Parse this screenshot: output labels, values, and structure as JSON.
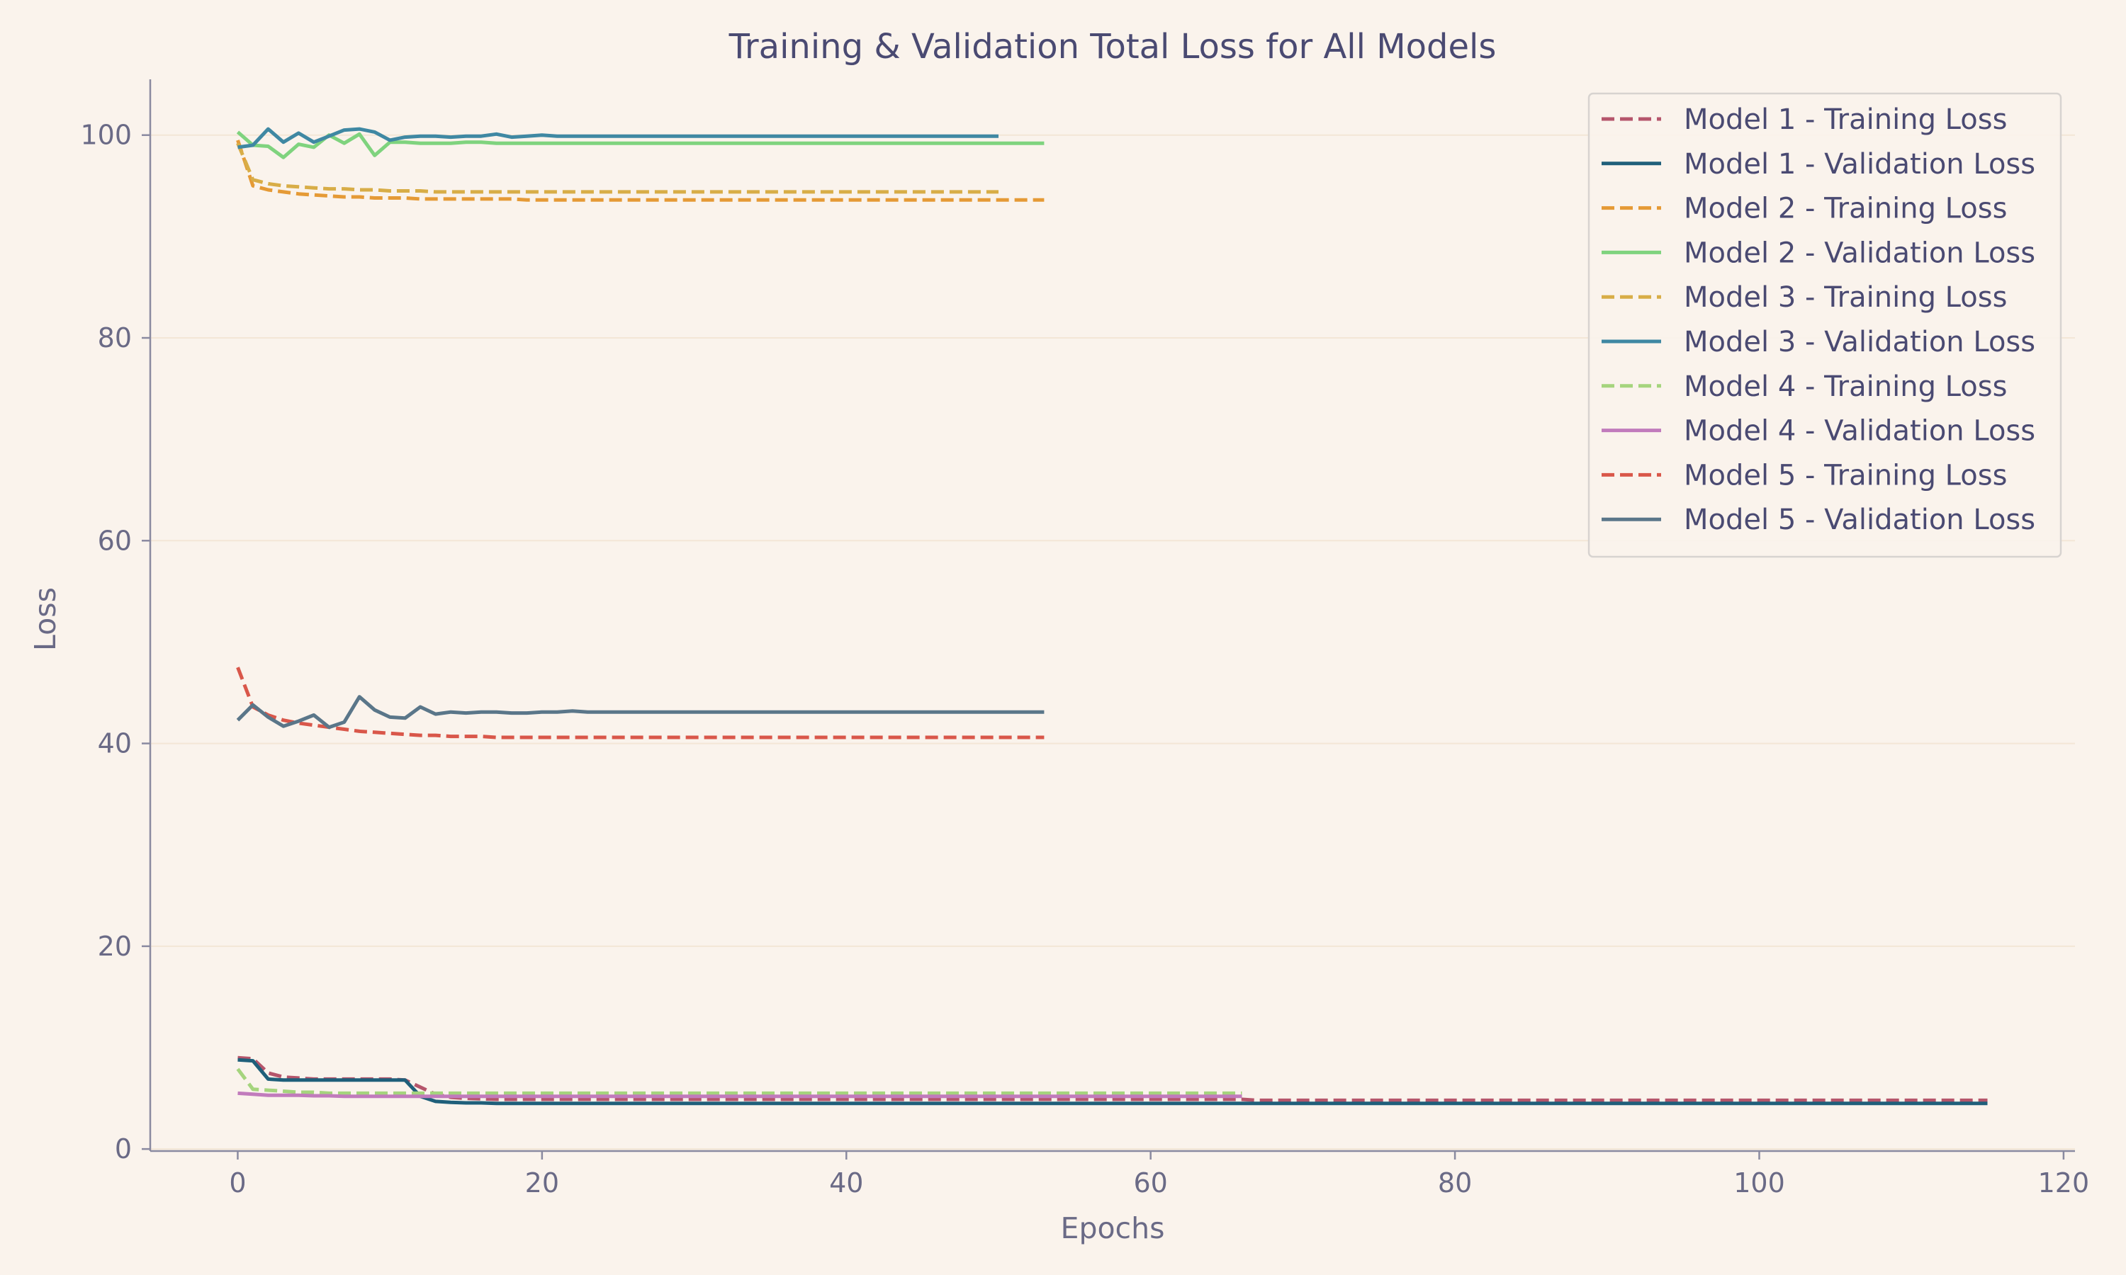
{
  "chart_data": {
    "type": "line",
    "title": "Training & Validation Total Loss for All Models",
    "xlabel": "Epochs",
    "ylabel": "Loss",
    "xlim": [
      -5.75,
      120.75
    ],
    "ylim": [
      -0.2,
      105.5
    ],
    "xticks": [
      0,
      20,
      40,
      60,
      80,
      100,
      120
    ],
    "yticks": [
      0,
      20,
      40,
      60,
      80,
      100
    ],
    "grid": "horizontal",
    "legend_position": "top-right",
    "series": [
      {
        "name": "Model 1 - Training Loss",
        "color": "#b5556b",
        "dash": true,
        "values": [
          9.0,
          8.9,
          7.5,
          7.1,
          7.0,
          6.9,
          6.9,
          6.9,
          6.9,
          6.9,
          6.9,
          6.8,
          6.1,
          5.4,
          5.1,
          5.0,
          4.95,
          4.9,
          4.9,
          4.9,
          4.9,
          4.9,
          4.9,
          4.9,
          4.9,
          4.9,
          4.9,
          4.9,
          4.9,
          4.9,
          4.9,
          4.9,
          4.9,
          4.9,
          4.9,
          4.9,
          4.9,
          4.9,
          4.9,
          4.9,
          4.9,
          4.9,
          4.9,
          4.9,
          4.9,
          4.9,
          4.9,
          4.9,
          4.9,
          4.9,
          4.9,
          4.9,
          4.9,
          4.9,
          4.9,
          4.9,
          4.9,
          4.9,
          4.9,
          4.9,
          4.9,
          4.9,
          4.9,
          4.9,
          4.9,
          4.9,
          4.9,
          4.8,
          4.8,
          4.8,
          4.8,
          4.8,
          4.8,
          4.8,
          4.8,
          4.8,
          4.8,
          4.8,
          4.8,
          4.8,
          4.8,
          4.8,
          4.8,
          4.8,
          4.8,
          4.8,
          4.8,
          4.8,
          4.8,
          4.8,
          4.8,
          4.8,
          4.8,
          4.8,
          4.8,
          4.8,
          4.8,
          4.8,
          4.8,
          4.8,
          4.8,
          4.8,
          4.8,
          4.8,
          4.8,
          4.8,
          4.8,
          4.8,
          4.8,
          4.8,
          4.8,
          4.8,
          4.8,
          4.8,
          4.8,
          4.8
        ]
      },
      {
        "name": "Model 1 - Validation Loss",
        "color": "#1f5f7a",
        "dash": false,
        "values": [
          8.8,
          8.7,
          6.9,
          6.8,
          6.8,
          6.8,
          6.8,
          6.8,
          6.8,
          6.8,
          6.8,
          6.8,
          5.2,
          4.7,
          4.6,
          4.55,
          4.55,
          4.5,
          4.5,
          4.5,
          4.5,
          4.5,
          4.5,
          4.5,
          4.5,
          4.5,
          4.5,
          4.5,
          4.5,
          4.5,
          4.5,
          4.5,
          4.5,
          4.5,
          4.5,
          4.5,
          4.5,
          4.5,
          4.5,
          4.5,
          4.5,
          4.5,
          4.5,
          4.5,
          4.5,
          4.5,
          4.5,
          4.5,
          4.5,
          4.5,
          4.5,
          4.5,
          4.5,
          4.5,
          4.5,
          4.5,
          4.5,
          4.5,
          4.5,
          4.5,
          4.5,
          4.5,
          4.5,
          4.5,
          4.5,
          4.5,
          4.5,
          4.5,
          4.5,
          4.5,
          4.5,
          4.5,
          4.5,
          4.5,
          4.5,
          4.5,
          4.5,
          4.5,
          4.5,
          4.5,
          4.5,
          4.5,
          4.5,
          4.5,
          4.5,
          4.5,
          4.5,
          4.5,
          4.5,
          4.5,
          4.5,
          4.5,
          4.5,
          4.5,
          4.5,
          4.5,
          4.5,
          4.5,
          4.5,
          4.5,
          4.5,
          4.5,
          4.5,
          4.5,
          4.5,
          4.5,
          4.5,
          4.5,
          4.5,
          4.5,
          4.5,
          4.5,
          4.5,
          4.5,
          4.5,
          4.5
        ]
      },
      {
        "name": "Model 2 - Training Loss",
        "color": "#e59a36",
        "dash": true,
        "values": [
          99.5,
          95.0,
          94.6,
          94.4,
          94.2,
          94.1,
          94.0,
          93.9,
          93.9,
          93.8,
          93.8,
          93.8,
          93.7,
          93.7,
          93.7,
          93.7,
          93.7,
          93.7,
          93.7,
          93.6,
          93.6,
          93.6,
          93.6,
          93.6,
          93.6,
          93.6,
          93.6,
          93.6,
          93.6,
          93.6,
          93.6,
          93.6,
          93.6,
          93.6,
          93.6,
          93.6,
          93.6,
          93.6,
          93.6,
          93.6,
          93.6,
          93.6,
          93.6,
          93.6,
          93.6,
          93.6,
          93.6,
          93.6,
          93.6,
          93.6,
          93.6,
          93.6,
          93.6,
          93.6
        ]
      },
      {
        "name": "Model 2 - Validation Loss",
        "color": "#7fd37e",
        "dash": false,
        "values": [
          100.3,
          99.0,
          98.9,
          97.8,
          99.1,
          98.8,
          100.0,
          99.2,
          100.1,
          98.0,
          99.3,
          99.3,
          99.2,
          99.2,
          99.2,
          99.3,
          99.3,
          99.2,
          99.2,
          99.2,
          99.2,
          99.2,
          99.2,
          99.2,
          99.2,
          99.2,
          99.2,
          99.2,
          99.2,
          99.2,
          99.2,
          99.2,
          99.2,
          99.2,
          99.2,
          99.2,
          99.2,
          99.2,
          99.2,
          99.2,
          99.2,
          99.2,
          99.2,
          99.2,
          99.2,
          99.2,
          99.2,
          99.2,
          99.2,
          99.2,
          99.2,
          99.2,
          99.2,
          99.2
        ]
      },
      {
        "name": "Model 3 - Training Loss",
        "color": "#d8ad47",
        "dash": true,
        "values": [
          99.2,
          95.6,
          95.2,
          95.0,
          94.9,
          94.8,
          94.7,
          94.7,
          94.6,
          94.6,
          94.5,
          94.5,
          94.5,
          94.4,
          94.4,
          94.4,
          94.4,
          94.4,
          94.4,
          94.4,
          94.4,
          94.4,
          94.4,
          94.4,
          94.4,
          94.4,
          94.4,
          94.4,
          94.4,
          94.4,
          94.4,
          94.4,
          94.4,
          94.4,
          94.4,
          94.4,
          94.4,
          94.4,
          94.4,
          94.4,
          94.4,
          94.4,
          94.4,
          94.4,
          94.4,
          94.4,
          94.4,
          94.4,
          94.4,
          94.4,
          94.4
        ]
      },
      {
        "name": "Model 3 - Validation Loss",
        "color": "#3f88a3",
        "dash": false,
        "values": [
          98.8,
          99.0,
          100.6,
          99.3,
          100.2,
          99.3,
          99.9,
          100.5,
          100.6,
          100.3,
          99.5,
          99.8,
          99.9,
          99.9,
          99.8,
          99.9,
          99.9,
          100.1,
          99.8,
          99.9,
          100.0,
          99.9,
          99.9,
          99.9,
          99.9,
          99.9,
          99.9,
          99.9,
          99.9,
          99.9,
          99.9,
          99.9,
          99.9,
          99.9,
          99.9,
          99.9,
          99.9,
          99.9,
          99.9,
          99.9,
          99.9,
          99.9,
          99.9,
          99.9,
          99.9,
          99.9,
          99.9,
          99.9,
          99.9,
          99.9,
          99.9
        ]
      },
      {
        "name": "Model 4 - Training Loss",
        "color": "#a5d47d",
        "dash": true,
        "values": [
          7.9,
          5.9,
          5.8,
          5.7,
          5.6,
          5.6,
          5.5,
          5.5,
          5.5,
          5.5,
          5.5,
          5.5,
          5.5,
          5.5,
          5.5,
          5.5,
          5.5,
          5.5,
          5.5,
          5.5,
          5.5,
          5.5,
          5.5,
          5.5,
          5.5,
          5.5,
          5.5,
          5.5,
          5.5,
          5.5,
          5.5,
          5.5,
          5.5,
          5.5,
          5.5,
          5.5,
          5.5,
          5.5,
          5.5,
          5.5,
          5.5,
          5.5,
          5.5,
          5.5,
          5.5,
          5.5,
          5.5,
          5.5,
          5.5,
          5.5,
          5.5,
          5.5,
          5.5,
          5.5,
          5.5,
          5.5,
          5.5,
          5.5,
          5.5,
          5.5,
          5.5,
          5.5,
          5.5,
          5.5,
          5.5,
          5.5,
          5.5
        ]
      },
      {
        "name": "Model 4 - Validation Loss",
        "color": "#c17bbc",
        "dash": false,
        "values": [
          5.5,
          5.4,
          5.3,
          5.3,
          5.3,
          5.25,
          5.25,
          5.2,
          5.2,
          5.2,
          5.2,
          5.2,
          5.2,
          5.2,
          5.2,
          5.2,
          5.2,
          5.2,
          5.2,
          5.2,
          5.2,
          5.2,
          5.2,
          5.2,
          5.2,
          5.2,
          5.2,
          5.2,
          5.2,
          5.2,
          5.2,
          5.2,
          5.2,
          5.2,
          5.2,
          5.2,
          5.2,
          5.2,
          5.2,
          5.2,
          5.2,
          5.2,
          5.2,
          5.2,
          5.2,
          5.2,
          5.2,
          5.2,
          5.2,
          5.2,
          5.2,
          5.2,
          5.2,
          5.2,
          5.2,
          5.2,
          5.2,
          5.2,
          5.2,
          5.2,
          5.2,
          5.2,
          5.2,
          5.2,
          5.2,
          5.2,
          5.2
        ]
      },
      {
        "name": "Model 5 - Training Loss",
        "color": "#d9574a",
        "dash": true,
        "values": [
          47.5,
          43.6,
          42.8,
          42.3,
          42.0,
          41.8,
          41.6,
          41.4,
          41.2,
          41.1,
          41.0,
          40.9,
          40.8,
          40.8,
          40.7,
          40.7,
          40.7,
          40.6,
          40.6,
          40.6,
          40.6,
          40.6,
          40.6,
          40.6,
          40.6,
          40.6,
          40.6,
          40.6,
          40.6,
          40.6,
          40.6,
          40.6,
          40.6,
          40.6,
          40.6,
          40.6,
          40.6,
          40.6,
          40.6,
          40.6,
          40.6,
          40.6,
          40.6,
          40.6,
          40.6,
          40.6,
          40.6,
          40.6,
          40.6,
          40.6,
          40.6,
          40.6,
          40.6,
          40.6
        ]
      },
      {
        "name": "Model 5 - Validation Loss",
        "color": "#5a7689",
        "dash": false,
        "values": [
          42.3,
          43.8,
          42.6,
          41.7,
          42.2,
          42.8,
          41.6,
          42.1,
          44.6,
          43.3,
          42.6,
          42.5,
          43.6,
          42.9,
          43.1,
          43.0,
          43.1,
          43.1,
          43.0,
          43.0,
          43.1,
          43.1,
          43.2,
          43.1,
          43.1,
          43.1,
          43.1,
          43.1,
          43.1,
          43.1,
          43.1,
          43.1,
          43.1,
          43.1,
          43.1,
          43.1,
          43.1,
          43.1,
          43.1,
          43.1,
          43.1,
          43.1,
          43.1,
          43.1,
          43.1,
          43.1,
          43.1,
          43.1,
          43.1,
          43.1,
          43.1,
          43.1,
          43.1,
          43.1
        ]
      }
    ]
  }
}
